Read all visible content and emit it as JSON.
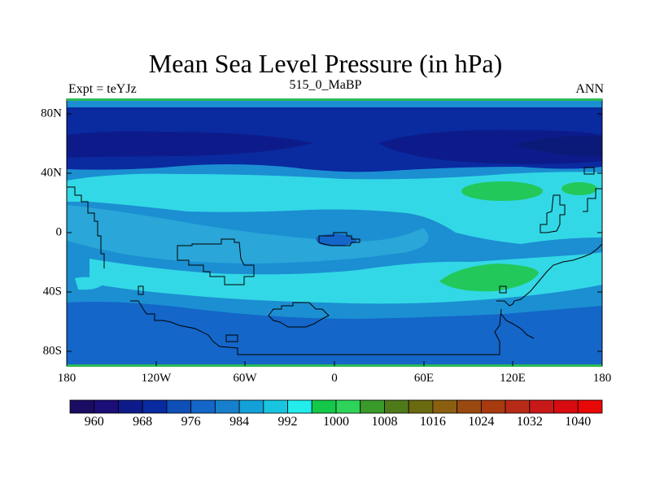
{
  "title": "Mean Sea Level Pressure (in hPa)",
  "subtitle_left": "Expt = teYJz",
  "subtitle_center": "515_0_MaBP",
  "subtitle_right": "ANN",
  "x_ticks": [
    "180",
    "120W",
    "60W",
    "0",
    "60E",
    "120E",
    "180"
  ],
  "y_ticks": [
    "80N",
    "40N",
    "0",
    "40S",
    "80S"
  ],
  "colorbar": {
    "labels": [
      "960",
      "968",
      "976",
      "984",
      "992",
      "1000",
      "1008",
      "1016",
      "1024",
      "1032",
      "1040"
    ],
    "colors": [
      "#1a0b63",
      "#1b0e78",
      "#0d1b8a",
      "#0a2aa0",
      "#0f4fb8",
      "#1466c8",
      "#1780cc",
      "#14a0d8",
      "#19c4e0",
      "#22ecec",
      "#14c84a",
      "#2ed45a",
      "#3a9a2a",
      "#4f7a1a",
      "#6a6a10",
      "#8a6010",
      "#9a4a10",
      "#a83a10",
      "#b82a18",
      "#c81818",
      "#d80c10",
      "#e80808"
    ]
  },
  "field_colors": {
    "deep_low": "#0d1b8a",
    "low": "#0a2aa0",
    "mid_low": "#1466c8",
    "mid": "#1b8fd2",
    "high": "#33d8e6",
    "very_high": "#22c85a",
    "frame_band": "#2dbb55"
  }
}
